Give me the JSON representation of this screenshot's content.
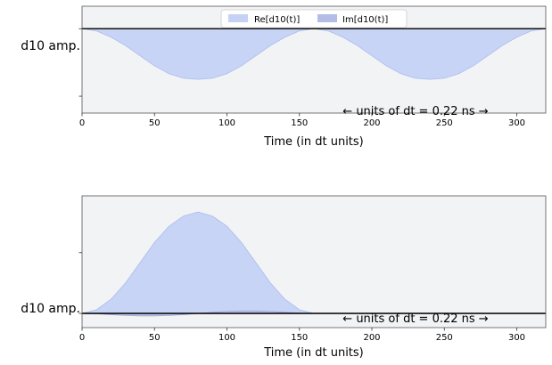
{
  "chart_data": [
    {
      "type": "area",
      "ylabel": "d10 amp.",
      "xlabel": "Time (in dt units)",
      "annotation": "← units of dt = 0.22 ns →",
      "xlim": [
        0,
        320
      ],
      "ylim": [
        -0.75,
        0.2
      ],
      "x_ticks": [
        0,
        50,
        100,
        150,
        200,
        250,
        300
      ],
      "y_tick_values": [
        0,
        -0.6
      ],
      "legend": {
        "placement": "top-center",
        "entries": [
          "Re[d10(t)]",
          "Im[d10(t)]"
        ]
      },
      "series": [
        {
          "name": "Re[d10(t)]",
          "color": "#c5d2f5",
          "x": [
            0,
            10,
            20,
            30,
            40,
            50,
            60,
            70,
            80,
            90,
            100,
            110,
            120,
            130,
            140,
            150,
            160,
            170,
            180,
            190,
            200,
            210,
            220,
            230,
            240,
            250,
            260,
            270,
            280,
            290,
            300,
            310,
            320
          ],
          "values": [
            0,
            -0.02,
            -0.075,
            -0.15,
            -0.24,
            -0.33,
            -0.4,
            -0.44,
            -0.45,
            -0.44,
            -0.4,
            -0.33,
            -0.24,
            -0.15,
            -0.075,
            -0.02,
            0,
            -0.02,
            -0.075,
            -0.15,
            -0.24,
            -0.33,
            -0.4,
            -0.44,
            -0.45,
            -0.44,
            -0.4,
            -0.33,
            -0.24,
            -0.15,
            -0.075,
            -0.02,
            0
          ]
        },
        {
          "name": "Im[d10(t)]",
          "color": "#b4bde6",
          "x": [
            0,
            320
          ],
          "values": [
            0,
            0
          ]
        }
      ]
    },
    {
      "type": "area",
      "ylabel": "d10 amp.",
      "xlabel": "Time (in dt units)",
      "annotation": "← units of dt = 0.22 ns →",
      "xlim": [
        0,
        320
      ],
      "ylim": [
        -0.07,
        0.58
      ],
      "x_ticks": [
        0,
        50,
        100,
        150,
        200,
        250,
        300
      ],
      "y_tick_values": [
        0,
        0.3
      ],
      "series": [
        {
          "name": "Re[d10(t)]",
          "color": "#c5d2f5",
          "x": [
            0,
            10,
            20,
            30,
            40,
            50,
            60,
            70,
            80,
            90,
            100,
            110,
            120,
            130,
            140,
            150,
            160,
            170,
            320
          ],
          "values": [
            0,
            0.018,
            0.07,
            0.15,
            0.25,
            0.35,
            0.43,
            0.48,
            0.5,
            0.48,
            0.43,
            0.35,
            0.25,
            0.15,
            0.07,
            0.018,
            0,
            0,
            0
          ]
        },
        {
          "name": "Im[d10(t)]",
          "color": "#b4bde6",
          "x": [
            0,
            10,
            20,
            30,
            40,
            50,
            60,
            70,
            80,
            90,
            100,
            110,
            120,
            130,
            140,
            150,
            160,
            170,
            320
          ],
          "values": [
            0,
            -0.002,
            -0.006,
            -0.01,
            -0.012,
            -0.012,
            -0.01,
            -0.006,
            0,
            0.006,
            0.01,
            0.012,
            0.012,
            0.01,
            0.006,
            0.002,
            0,
            0,
            0
          ]
        }
      ]
    }
  ]
}
